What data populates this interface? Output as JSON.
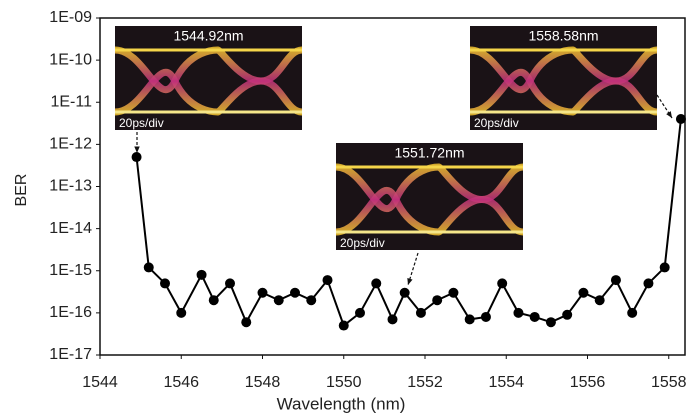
{
  "chart_data": {
    "type": "line",
    "y_label": "BER",
    "x_label": "Wavelength (nm)",
    "x": [
      1544.9,
      1545.2,
      1545.6,
      1546.0,
      1546.5,
      1546.8,
      1547.2,
      1547.6,
      1548.0,
      1548.4,
      1548.8,
      1549.2,
      1549.6,
      1550.0,
      1550.4,
      1550.8,
      1551.2,
      1551.5,
      1551.9,
      1552.3,
      1552.7,
      1553.1,
      1553.5,
      1553.9,
      1554.3,
      1554.7,
      1555.1,
      1555.5,
      1555.9,
      1556.3,
      1556.7,
      1557.1,
      1557.5,
      1557.9,
      1558.3
    ],
    "series": [
      {
        "color": "#000000",
        "values": [
          5e-13,
          1.2e-15,
          5e-16,
          1e-16,
          8e-16,
          2e-16,
          5e-16,
          6e-17,
          3e-16,
          2e-16,
          3e-16,
          2e-16,
          6e-16,
          5e-17,
          1e-16,
          5e-16,
          7e-17,
          3e-16,
          1e-16,
          2e-16,
          3e-16,
          7e-17,
          8e-17,
          5e-16,
          1e-16,
          8e-17,
          6e-17,
          9e-17,
          3e-16,
          2e-16,
          6e-16,
          1e-16,
          5e-16,
          1.2e-15,
          4e-12
        ]
      }
    ],
    "xlim": [
      1544,
      1558.4
    ],
    "xticks": [
      1544,
      1546,
      1548,
      1550,
      1552,
      1554,
      1556,
      1558
    ],
    "ylim": [
      1e-17,
      1e-09
    ],
    "log_y": true,
    "yticks": [
      {
        "value": 1e-17,
        "label": "1E-17"
      },
      {
        "value": 1e-16,
        "label": "1E-16"
      },
      {
        "value": 1e-15,
        "label": "1E-15"
      },
      {
        "value": 1e-14,
        "label": "1E-14"
      },
      {
        "value": 1e-13,
        "label": "1E-13"
      },
      {
        "value": 1e-12,
        "label": "1E-12"
      },
      {
        "value": 1e-11,
        "label": "1E-11"
      },
      {
        "value": 1e-10,
        "label": "1E-10"
      },
      {
        "value": 1e-09,
        "label": "1E-09"
      }
    ],
    "insets": [
      {
        "label": "1544.92nm",
        "scale": "20ps/div"
      },
      {
        "label": "1558.58nm",
        "scale": "20ps/div"
      },
      {
        "label": "1551.72nm",
        "scale": "20ps/div"
      }
    ]
  }
}
